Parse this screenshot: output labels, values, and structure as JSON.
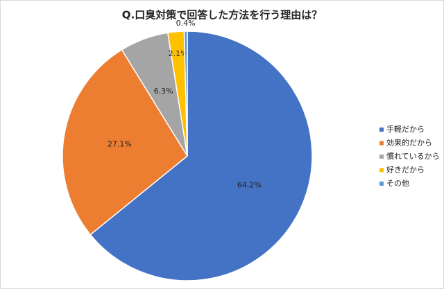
{
  "chart_data": {
    "type": "pie",
    "title": "Q.口臭対策で回答した方法を行う理由は？",
    "categories": [
      "手軽だから",
      "効果的だから",
      "慣れているから",
      "好きだから",
      "その他"
    ],
    "values": [
      64.2,
      27.1,
      6.3,
      2.1,
      0.4
    ],
    "value_labels": [
      "64.2%",
      "27.1%",
      "6.3%",
      "2.1%",
      "0.4%"
    ],
    "colors": [
      "#4472c4",
      "#ed7d31",
      "#a5a5a5",
      "#ffc000",
      "#5b9bd5"
    ],
    "legend": "right"
  }
}
